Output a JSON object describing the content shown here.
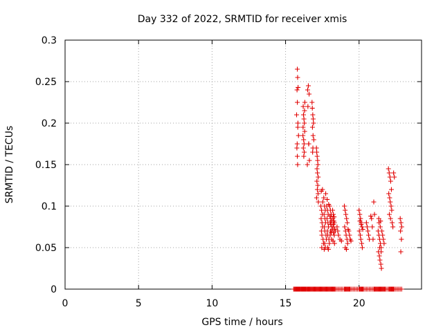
{
  "chart_data": {
    "type": "scatter",
    "title": "Day 332 of 2022, SRMTID for receiver xmis",
    "xlabel": "GPS time / hours",
    "ylabel": "SRMTID / TECUs",
    "xlim": [
      0,
      24.25
    ],
    "ylim": [
      0,
      0.3
    ],
    "xticks": [
      0,
      5,
      10,
      15,
      20
    ],
    "yticks": [
      0,
      0.05,
      0.1,
      0.15,
      0.2,
      0.25,
      0.3
    ],
    "xtick_labels": [
      "0",
      "5",
      "10",
      "15",
      "20"
    ],
    "ytick_labels": [
      "0",
      "0.05",
      "0.1",
      "0.15",
      "0.2",
      "0.25",
      "0.3"
    ],
    "grid": true,
    "legend": "none",
    "marker": "plus",
    "color": "#e00000",
    "series": [
      {
        "x": [
          15.55,
          15.6,
          15.65,
          15.7,
          15.72,
          15.75,
          15.78,
          15.8,
          15.82,
          15.85,
          15.88,
          15.9,
          15.92,
          15.95,
          15.98,
          16.0,
          16.05,
          16.08,
          16.1,
          16.12,
          16.15,
          16.18,
          16.2,
          16.22,
          16.25,
          16.28,
          16.3,
          16.32,
          16.35,
          16.38,
          16.4,
          16.45,
          16.5,
          16.55,
          16.6,
          16.65,
          16.7,
          16.75,
          16.8,
          16.85,
          16.9,
          16.95,
          17.0,
          17.05,
          17.1,
          17.15,
          17.2,
          17.25,
          17.3,
          17.35,
          17.4,
          17.45,
          17.5,
          17.55,
          17.6,
          17.65,
          17.7,
          17.75,
          17.8,
          17.85,
          17.9,
          17.95,
          18.0,
          18.05,
          18.1,
          18.15,
          18.2,
          18.25,
          18.3,
          18.35,
          18.4,
          18.5,
          18.6,
          18.7,
          18.8,
          18.9,
          19.0,
          19.05,
          19.1,
          19.15,
          19.2,
          19.25,
          19.3,
          19.35,
          19.4,
          19.5,
          19.6,
          19.7,
          19.8,
          19.9,
          20.0,
          20.05,
          20.1,
          20.15,
          20.2,
          20.25,
          20.3,
          20.4,
          20.5,
          20.6,
          20.7,
          20.8,
          20.9,
          21.0,
          21.05,
          21.1,
          21.15,
          21.2,
          21.25,
          21.3,
          21.35,
          21.4,
          21.45,
          21.5,
          21.55,
          21.6,
          21.65,
          21.7,
          21.75,
          21.8,
          21.9,
          22.0,
          22.05,
          22.1,
          22.15,
          22.2,
          22.25,
          22.3,
          22.35,
          22.4,
          22.5,
          22.6,
          22.7,
          22.8,
          22.9
        ],
        "y": [
          0,
          0,
          0,
          0,
          0,
          0,
          0,
          0,
          0,
          0,
          0,
          0,
          0,
          0,
          0,
          0,
          0,
          0,
          0,
          0,
          0,
          0,
          0,
          0,
          0,
          0,
          0,
          0,
          0,
          0,
          0,
          0,
          0,
          0,
          0,
          0,
          0,
          0,
          0,
          0,
          0,
          0,
          0,
          0,
          0,
          0,
          0,
          0,
          0,
          0,
          0,
          0,
          0,
          0,
          0,
          0,
          0,
          0,
          0,
          0,
          0,
          0,
          0,
          0,
          0,
          0,
          0,
          0,
          0,
          0,
          0,
          0,
          0,
          0,
          0,
          0,
          0,
          0,
          0,
          0,
          0,
          0,
          0,
          0,
          0,
          0,
          0,
          0,
          0,
          0,
          0,
          0,
          0,
          0,
          0,
          0,
          0,
          0,
          0,
          0,
          0,
          0,
          0,
          0,
          0,
          0,
          0,
          0,
          0,
          0,
          0,
          0,
          0,
          0,
          0,
          0,
          0,
          0,
          0,
          0,
          0,
          0,
          0,
          0,
          0,
          0,
          0,
          0,
          0,
          0,
          0,
          0,
          0,
          0,
          0
        ]
      },
      {
        "x": [
          15.8,
          15.82,
          15.85,
          15.78,
          15.8,
          15.75,
          15.83,
          15.88,
          15.77,
          15.8,
          15.82,
          15.79,
          15.84,
          16.2,
          16.22,
          16.25,
          16.28,
          16.3,
          16.18,
          16.23,
          16.26,
          16.21,
          16.27,
          16.24,
          16.19,
          16.29,
          16.31,
          16.5,
          16.55,
          16.6,
          16.52,
          16.58,
          16.62,
          16.48,
          16.57,
          16.8,
          16.82,
          16.85,
          16.88,
          16.9,
          16.83,
          16.87,
          16.92,
          16.86,
          16.84,
          17.1,
          17.12,
          17.15,
          17.18,
          17.2,
          17.14,
          17.17,
          17.22,
          17.13,
          17.19,
          17.16,
          17.21,
          17.11,
          17.23,
          17.4,
          17.45,
          17.5,
          17.42,
          17.48,
          17.52,
          17.44,
          17.47,
          17.55,
          17.58,
          17.46,
          17.51,
          17.43,
          17.53,
          17.6,
          17.65,
          17.7,
          17.62,
          17.68,
          17.72,
          17.64,
          17.67,
          17.75,
          17.78,
          17.66,
          17.71,
          17.63,
          17.73,
          17.8,
          17.85,
          17.9,
          17.82,
          17.88,
          17.92,
          17.84,
          17.87,
          17.95,
          17.98,
          17.86,
          17.91,
          17.83,
          17.93,
          18.0,
          18.05,
          18.1,
          18.02,
          18.08,
          18.12,
          18.04,
          18.07,
          18.15,
          18.18,
          18.06,
          18.11,
          18.03,
          18.13,
          18.2,
          18.25,
          18.3,
          18.22,
          18.28,
          18.32,
          18.24,
          18.27,
          18.35,
          18.38,
          18.26,
          18.31,
          18.23,
          18.33,
          18.5,
          18.55,
          18.6,
          18.7,
          18.8,
          19.0,
          19.05,
          19.1,
          19.15,
          19.2,
          19.02,
          19.08,
          19.12,
          19.18,
          19.22,
          19.06,
          19.14,
          19.25,
          19.3,
          19.35,
          19.4,
          19.45,
          20.0,
          20.05,
          20.1,
          20.15,
          20.2,
          20.02,
          20.08,
          20.12,
          20.18,
          20.22,
          20.06,
          20.14,
          20.25,
          20.5,
          20.55,
          20.6,
          20.65,
          20.7,
          20.8,
          20.85,
          20.9,
          20.95,
          21.0,
          21.05,
          21.3,
          21.35,
          21.4,
          21.45,
          21.5,
          21.32,
          21.38,
          21.42,
          21.48,
          21.52,
          21.36,
          21.44,
          21.55,
          21.6,
          21.65,
          21.7,
          21.34,
          21.46,
          21.4,
          21.5,
          22.0,
          22.05,
          22.1,
          22.15,
          22.2,
          22.02,
          22.08,
          22.12,
          22.18,
          22.22,
          22.06,
          22.14,
          22.25,
          22.3,
          22.35,
          22.4,
          22.8,
          22.85,
          22.9,
          22.82,
          22.88,
          22.84
        ],
        "y": [
          0.265,
          0.255,
          0.243,
          0.24,
          0.225,
          0.21,
          0.195,
          0.185,
          0.17,
          0.16,
          0.15,
          0.175,
          0.2,
          0.22,
          0.21,
          0.205,
          0.2,
          0.19,
          0.185,
          0.18,
          0.175,
          0.17,
          0.165,
          0.16,
          0.195,
          0.215,
          0.225,
          0.24,
          0.245,
          0.235,
          0.22,
          0.175,
          0.155,
          0.15,
          0.175,
          0.225,
          0.218,
          0.21,
          0.205,
          0.2,
          0.195,
          0.185,
          0.18,
          0.17,
          0.165,
          0.17,
          0.165,
          0.16,
          0.155,
          0.15,
          0.145,
          0.14,
          0.135,
          0.13,
          0.125,
          0.12,
          0.115,
          0.11,
          0.105,
          0.1,
          0.095,
          0.09,
          0.085,
          0.08,
          0.075,
          0.07,
          0.065,
          0.06,
          0.055,
          0.05,
          0.12,
          0.118,
          0.105,
          0.11,
          0.1,
          0.095,
          0.09,
          0.085,
          0.08,
          0.075,
          0.07,
          0.065,
          0.06,
          0.055,
          0.05,
          0.048,
          0.115,
          0.1,
          0.095,
          0.09,
          0.085,
          0.08,
          0.075,
          0.07,
          0.065,
          0.06,
          0.055,
          0.05,
          0.048,
          0.108,
          0.102,
          0.1,
          0.095,
          0.09,
          0.088,
          0.085,
          0.082,
          0.08,
          0.078,
          0.075,
          0.072,
          0.07,
          0.068,
          0.065,
          0.06,
          0.095,
          0.09,
          0.087,
          0.085,
          0.082,
          0.08,
          0.078,
          0.075,
          0.072,
          0.07,
          0.068,
          0.065,
          0.058,
          0.055,
          0.075,
          0.07,
          0.065,
          0.06,
          0.058,
          0.1,
          0.095,
          0.09,
          0.085,
          0.08,
          0.075,
          0.07,
          0.065,
          0.06,
          0.055,
          0.05,
          0.048,
          0.072,
          0.07,
          0.065,
          0.06,
          0.058,
          0.095,
          0.09,
          0.085,
          0.08,
          0.075,
          0.07,
          0.065,
          0.06,
          0.055,
          0.05,
          0.082,
          0.078,
          0.072,
          0.08,
          0.075,
          0.07,
          0.065,
          0.06,
          0.088,
          0.085,
          0.075,
          0.06,
          0.105,
          0.09,
          0.07,
          0.065,
          0.06,
          0.055,
          0.05,
          0.045,
          0.04,
          0.035,
          0.03,
          0.025,
          0.08,
          0.075,
          0.07,
          0.065,
          0.06,
          0.055,
          0.085,
          0.082,
          0.05,
          0.045,
          0.145,
          0.14,
          0.135,
          0.13,
          0.12,
          0.115,
          0.11,
          0.105,
          0.1,
          0.095,
          0.09,
          0.085,
          0.08,
          0.075,
          0.14,
          0.135,
          0.085,
          0.08,
          0.075,
          0.07,
          0.06,
          0.045
        ]
      }
    ]
  }
}
